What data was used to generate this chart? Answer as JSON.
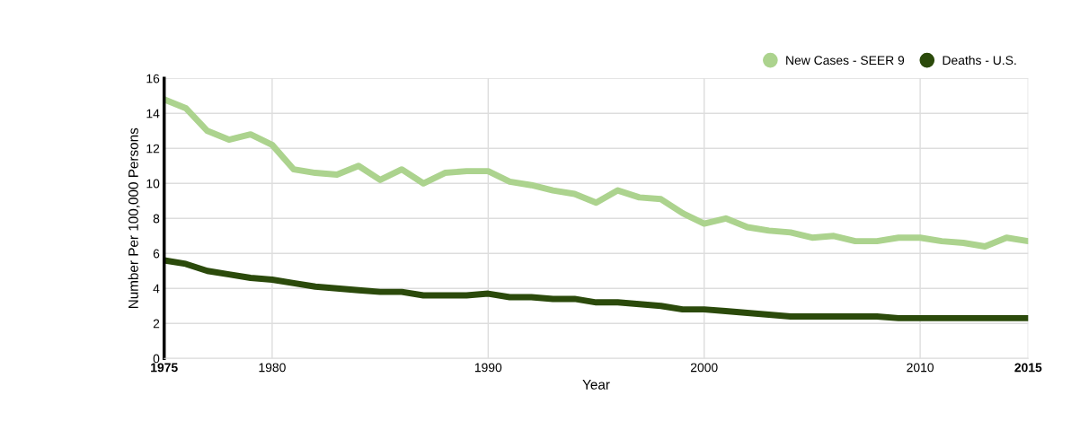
{
  "chart_data": {
    "type": "line",
    "xlabel": "Year",
    "ylabel": "Number Per 100,000 Persons",
    "x": [
      1975,
      1976,
      1977,
      1978,
      1979,
      1980,
      1981,
      1982,
      1983,
      1984,
      1985,
      1986,
      1987,
      1988,
      1989,
      1990,
      1991,
      1992,
      1993,
      1994,
      1995,
      1996,
      1997,
      1998,
      1999,
      2000,
      2001,
      2002,
      2003,
      2004,
      2005,
      2006,
      2007,
      2008,
      2009,
      2010,
      2011,
      2012,
      2013,
      2014,
      2015
    ],
    "series": [
      {
        "name": "New Cases - SEER 9",
        "color": "#acd38e",
        "values": [
          14.8,
          14.3,
          13.0,
          12.5,
          12.8,
          12.2,
          10.8,
          10.6,
          10.5,
          11.0,
          10.2,
          10.8,
          10.0,
          10.6,
          10.7,
          10.7,
          10.1,
          9.9,
          9.6,
          9.4,
          8.9,
          9.6,
          9.2,
          9.1,
          8.3,
          7.7,
          8.0,
          7.5,
          7.3,
          7.2,
          6.9,
          7.0,
          6.7,
          6.7,
          6.9,
          6.9,
          6.7,
          6.6,
          6.4,
          6.9,
          6.7
        ]
      },
      {
        "name": "Deaths - U.S.",
        "color": "#2b4a0b",
        "values": [
          5.6,
          5.4,
          5.0,
          4.8,
          4.6,
          4.5,
          4.3,
          4.1,
          4.0,
          3.9,
          3.8,
          3.8,
          3.6,
          3.6,
          3.6,
          3.7,
          3.5,
          3.5,
          3.4,
          3.4,
          3.2,
          3.2,
          3.1,
          3.0,
          2.8,
          2.8,
          2.7,
          2.6,
          2.5,
          2.4,
          2.4,
          2.4,
          2.4,
          2.4,
          2.3,
          2.3,
          2.3,
          2.3,
          2.3,
          2.3,
          2.3
        ]
      }
    ],
    "xlim": [
      1975,
      2015
    ],
    "xticks": [
      1975,
      1980,
      1990,
      2000,
      2010,
      2015
    ],
    "ylim": [
      0,
      16
    ],
    "yticks": [
      0,
      2,
      4,
      6,
      8,
      10,
      12,
      14,
      16
    ],
    "grid": true,
    "legend": "top right",
    "marker": "none",
    "line_style": "solid"
  }
}
